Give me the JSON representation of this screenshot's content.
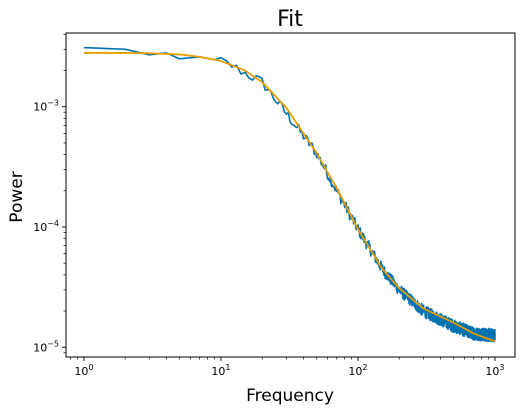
{
  "chart_data": {
    "type": "line",
    "title": "Fit",
    "xlabel": "Frequency",
    "ylabel": "Power",
    "xscale": "log",
    "yscale": "log",
    "xlim": [
      0.74,
      1400
    ],
    "ylim": [
      8.3e-06,
      0.0041
    ],
    "grid": false,
    "legend": "none",
    "x_ticks": [
      {
        "value": 1,
        "base": "10",
        "exp": "0"
      },
      {
        "value": 10,
        "base": "10",
        "exp": "1"
      },
      {
        "value": 100,
        "base": "10",
        "exp": "2"
      },
      {
        "value": 1000,
        "base": "10",
        "exp": "3"
      }
    ],
    "y_ticks": [
      {
        "value": 1e-05,
        "base": "10",
        "exp": "−5"
      },
      {
        "value": 0.0001,
        "base": "10",
        "exp": "−4"
      },
      {
        "value": 0.001,
        "base": "10",
        "exp": "−3"
      }
    ],
    "series": [
      {
        "color": "#0072b2",
        "style": "noisy",
        "x": [
          1,
          2,
          3,
          4,
          5,
          7,
          10,
          12,
          15,
          20,
          30,
          50,
          70,
          100,
          150,
          200,
          300,
          500,
          700,
          1000
        ],
        "y": [
          0.0031,
          0.003,
          0.0027,
          0.0028,
          0.0025,
          0.0026,
          0.0024,
          0.0022,
          0.0019,
          0.0016,
          0.00088,
          0.00041,
          0.0002,
          9.6e-05,
          4.5e-05,
          3e-05,
          2e-05,
          1.5e-05,
          1.3e-05,
          1.25e-05
        ]
      },
      {
        "color": "#e69f00",
        "style": "smooth",
        "x": [
          1,
          2,
          3,
          5,
          7,
          10,
          15,
          20,
          30,
          50,
          70,
          100,
          150,
          200,
          300,
          500,
          700,
          1000
        ],
        "y": [
          0.0028,
          0.0028,
          0.00278,
          0.00272,
          0.0026,
          0.0024,
          0.002,
          0.0016,
          0.00098,
          0.00041,
          0.00021,
          9.6e-05,
          4.5e-05,
          3.1e-05,
          2.1e-05,
          1.6e-05,
          1.3e-05,
          1.12e-05
        ]
      }
    ]
  }
}
